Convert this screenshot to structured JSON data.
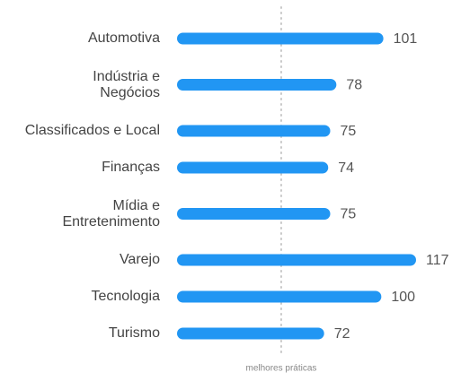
{
  "chart_data": {
    "type": "bar",
    "orientation": "horizontal",
    "categories": [
      "Automotiva",
      "Indústria e\nNegócios",
      "Classificados e Local",
      "Finanças",
      "Mídia e\nEntretenimento",
      "Varejo",
      "Tecnologia",
      "Turismo"
    ],
    "values": [
      101,
      78,
      75,
      74,
      75,
      117,
      100,
      72
    ],
    "color": "#2196f3",
    "xlim": [
      0,
      117
    ],
    "reference": {
      "value": 51,
      "label": "melhores práticas"
    }
  }
}
